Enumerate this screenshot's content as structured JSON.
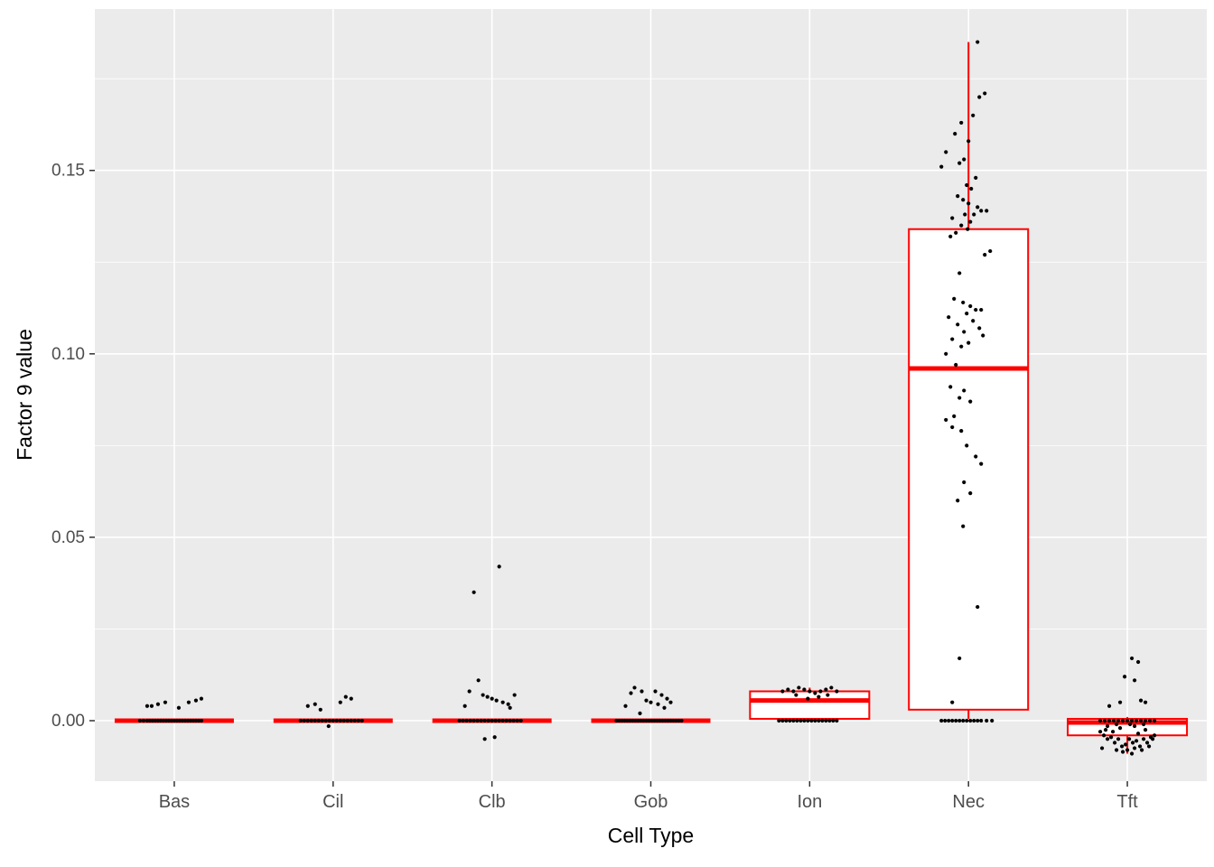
{
  "figure": {
    "background": "#FFFFFF"
  },
  "chart_data": {
    "type": "boxplot",
    "title": "",
    "xlabel": "Cell Type",
    "ylabel": "Factor 9 value",
    "categories": [
      "Bas",
      "Cil",
      "Clb",
      "Gob",
      "Ion",
      "Nec",
      "Tft"
    ],
    "ylim": [
      -0.0165,
      0.194
    ],
    "y_major_ticks": [
      0.0,
      0.05,
      0.1,
      0.15
    ],
    "y_major_tick_labels": [
      "0.00",
      "0.05",
      "0.10",
      "0.15"
    ],
    "y_minor_ticks": [
      0.025,
      0.075,
      0.125,
      0.175
    ],
    "grid": true,
    "legend": "none",
    "panel_background": "#EBEBEB",
    "grid_color": "#FFFFFF",
    "box_color": "#FF0000",
    "box_fill": "#FFFFFF",
    "point_color": "#000000",
    "tick_label_color": "#4D4D4D",
    "boxes": [
      {
        "category": "Bas",
        "whisker_low": 0.0,
        "q1": 0.0,
        "median": 0.0,
        "q3": 0.0,
        "whisker_high": 0.0
      },
      {
        "category": "Cil",
        "whisker_low": 0.0,
        "q1": 0.0,
        "median": 0.0,
        "q3": 0.0,
        "whisker_high": 0.0
      },
      {
        "category": "Clb",
        "whisker_low": 0.0,
        "q1": 0.0,
        "median": 0.0,
        "q3": 0.0,
        "whisker_high": 0.0
      },
      {
        "category": "Gob",
        "whisker_low": 0.0,
        "q1": 0.0,
        "median": 0.0,
        "q3": 0.0,
        "whisker_high": 0.0
      },
      {
        "category": "Ion",
        "whisker_low": 0.0,
        "q1": 0.0005,
        "median": 0.0055,
        "q3": 0.008,
        "whisker_high": 0.009
      },
      {
        "category": "Nec",
        "whisker_low": 0.0005,
        "q1": 0.003,
        "median": 0.096,
        "q3": 0.134,
        "whisker_high": 0.185
      },
      {
        "category": "Tft",
        "whisker_low": -0.009,
        "q1": -0.004,
        "median": -0.0005,
        "q3": 0.0005,
        "whisker_high": 0.001
      }
    ],
    "points": {
      "Bas": [
        [
          -30,
          0.004
        ],
        [
          -25,
          0.004
        ],
        [
          -18,
          0.0045
        ],
        [
          -10,
          0.005
        ],
        [
          5,
          0.0035
        ],
        [
          16,
          0.005
        ],
        [
          24,
          0.0055
        ],
        [
          30,
          0.006
        ],
        [
          -38,
          0
        ],
        [
          -34,
          0
        ],
        [
          -30,
          0
        ],
        [
          -27,
          0
        ],
        [
          -24,
          0
        ],
        [
          -21,
          0
        ],
        [
          -18,
          0
        ],
        [
          -15,
          0
        ],
        [
          -12,
          0
        ],
        [
          -9,
          0
        ],
        [
          -6,
          0
        ],
        [
          -3,
          0
        ],
        [
          0,
          0
        ],
        [
          3,
          0
        ],
        [
          6,
          0
        ],
        [
          9,
          0
        ],
        [
          12,
          0
        ],
        [
          15,
          0
        ],
        [
          18,
          0
        ],
        [
          21,
          0
        ],
        [
          24,
          0
        ],
        [
          27,
          0
        ],
        [
          30,
          0
        ]
      ],
      "Cil": [
        [
          -28,
          0.004
        ],
        [
          -20,
          0.0045
        ],
        [
          -14,
          0.003
        ],
        [
          8,
          0.005
        ],
        [
          14,
          0.0065
        ],
        [
          20,
          0.006
        ],
        [
          -5,
          -0.0015
        ],
        [
          -36,
          0
        ],
        [
          -32,
          0
        ],
        [
          -28,
          0
        ],
        [
          -24,
          0
        ],
        [
          -20,
          0
        ],
        [
          -16,
          0
        ],
        [
          -12,
          0
        ],
        [
          -8,
          0
        ],
        [
          -4,
          0
        ],
        [
          0,
          0
        ],
        [
          4,
          0
        ],
        [
          8,
          0
        ],
        [
          12,
          0
        ],
        [
          16,
          0
        ],
        [
          20,
          0
        ],
        [
          24,
          0
        ],
        [
          28,
          0
        ],
        [
          32,
          0
        ]
      ],
      "Clb": [
        [
          -20,
          0.035
        ],
        [
          8,
          0.042
        ],
        [
          -15,
          0.011
        ],
        [
          -25,
          0.008
        ],
        [
          -10,
          0.007
        ],
        [
          -5,
          0.0065
        ],
        [
          0,
          0.006
        ],
        [
          5,
          0.0055
        ],
        [
          12,
          0.005
        ],
        [
          18,
          0.0045
        ],
        [
          25,
          0.007
        ],
        [
          -30,
          0.004
        ],
        [
          20,
          0.0035
        ],
        [
          -8,
          -0.005
        ],
        [
          3,
          -0.0045
        ],
        [
          -36,
          0
        ],
        [
          -32,
          0
        ],
        [
          -28,
          0
        ],
        [
          -24,
          0
        ],
        [
          -20,
          0
        ],
        [
          -16,
          0
        ],
        [
          -12,
          0
        ],
        [
          -8,
          0
        ],
        [
          -4,
          0
        ],
        [
          0,
          0
        ],
        [
          4,
          0
        ],
        [
          8,
          0
        ],
        [
          12,
          0
        ],
        [
          16,
          0
        ],
        [
          20,
          0
        ],
        [
          24,
          0
        ],
        [
          28,
          0
        ],
        [
          32,
          0
        ]
      ],
      "Gob": [
        [
          -18,
          0.009
        ],
        [
          -10,
          0.008
        ],
        [
          -22,
          0.0075
        ],
        [
          5,
          0.008
        ],
        [
          12,
          0.007
        ],
        [
          18,
          0.006
        ],
        [
          -5,
          0.0055
        ],
        [
          0,
          0.005
        ],
        [
          22,
          0.005
        ],
        [
          8,
          0.0045
        ],
        [
          -28,
          0.004
        ],
        [
          15,
          0.0035
        ],
        [
          -12,
          0.002
        ],
        [
          -38,
          0
        ],
        [
          -35,
          0
        ],
        [
          -32,
          0
        ],
        [
          -29,
          0
        ],
        [
          -26,
          0
        ],
        [
          -23,
          0
        ],
        [
          -20,
          0
        ],
        [
          -17,
          0
        ],
        [
          -14,
          0
        ],
        [
          -11,
          0
        ],
        [
          -8,
          0
        ],
        [
          -5,
          0
        ],
        [
          -2,
          0
        ],
        [
          1,
          0
        ],
        [
          4,
          0
        ],
        [
          7,
          0
        ],
        [
          10,
          0
        ],
        [
          13,
          0
        ],
        [
          16,
          0
        ],
        [
          19,
          0
        ],
        [
          22,
          0
        ],
        [
          25,
          0
        ],
        [
          28,
          0
        ],
        [
          31,
          0
        ],
        [
          34,
          0
        ]
      ],
      "Ion": [
        [
          -30,
          0.008
        ],
        [
          -24,
          0.0085
        ],
        [
          -18,
          0.008
        ],
        [
          -12,
          0.009
        ],
        [
          -6,
          0.0085
        ],
        [
          0,
          0.008
        ],
        [
          6,
          0.0075
        ],
        [
          12,
          0.008
        ],
        [
          18,
          0.0085
        ],
        [
          24,
          0.009
        ],
        [
          30,
          0.008
        ],
        [
          -15,
          0.007
        ],
        [
          10,
          0.0065
        ],
        [
          -2,
          0.006
        ],
        [
          20,
          0.007
        ],
        [
          -34,
          0
        ],
        [
          -30,
          0
        ],
        [
          -26,
          0
        ],
        [
          -22,
          0
        ],
        [
          -18,
          0
        ],
        [
          -14,
          0
        ],
        [
          -10,
          0
        ],
        [
          -6,
          0
        ],
        [
          -2,
          0
        ],
        [
          2,
          0
        ],
        [
          6,
          0
        ],
        [
          10,
          0
        ],
        [
          14,
          0
        ],
        [
          18,
          0
        ],
        [
          22,
          0
        ],
        [
          26,
          0
        ],
        [
          30,
          0
        ]
      ],
      "Nec": [
        [
          10,
          0.185
        ],
        [
          18,
          0.171
        ],
        [
          12,
          0.17
        ],
        [
          5,
          0.165
        ],
        [
          -8,
          0.163
        ],
        [
          -15,
          0.16
        ],
        [
          0,
          0.158
        ],
        [
          -25,
          0.155
        ],
        [
          -5,
          0.153
        ],
        [
          -10,
          0.152
        ],
        [
          -30,
          0.151
        ],
        [
          8,
          0.148
        ],
        [
          -2,
          0.146
        ],
        [
          3,
          0.145
        ],
        [
          -12,
          0.143
        ],
        [
          -6,
          0.142
        ],
        [
          0,
          0.141
        ],
        [
          10,
          0.14
        ],
        [
          14,
          0.139
        ],
        [
          20,
          0.139
        ],
        [
          -4,
          0.138
        ],
        [
          6,
          0.138
        ],
        [
          -18,
          0.137
        ],
        [
          2,
          0.136
        ],
        [
          -8,
          0.135
        ],
        [
          -1,
          0.134
        ],
        [
          -14,
          0.133
        ],
        [
          -20,
          0.132
        ],
        [
          24,
          0.128
        ],
        [
          18,
          0.127
        ],
        [
          -10,
          0.122
        ],
        [
          -16,
          0.115
        ],
        [
          -6,
          0.114
        ],
        [
          2,
          0.113
        ],
        [
          8,
          0.112
        ],
        [
          14,
          0.112
        ],
        [
          -2,
          0.111
        ],
        [
          -22,
          0.11
        ],
        [
          5,
          0.109
        ],
        [
          -12,
          0.108
        ],
        [
          12,
          0.107
        ],
        [
          -5,
          0.106
        ],
        [
          16,
          0.105
        ],
        [
          -18,
          0.104
        ],
        [
          0,
          0.103
        ],
        [
          -8,
          0.102
        ],
        [
          -25,
          0.1
        ],
        [
          -14,
          0.097
        ],
        [
          -20,
          0.091
        ],
        [
          -5,
          0.09
        ],
        [
          -10,
          0.088
        ],
        [
          2,
          0.087
        ],
        [
          -16,
          0.083
        ],
        [
          -25,
          0.082
        ],
        [
          -18,
          0.08
        ],
        [
          -8,
          0.079
        ],
        [
          -2,
          0.075
        ],
        [
          8,
          0.072
        ],
        [
          14,
          0.07
        ],
        [
          -5,
          0.065
        ],
        [
          2,
          0.062
        ],
        [
          -12,
          0.06
        ],
        [
          -6,
          0.053
        ],
        [
          10,
          0.031
        ],
        [
          -10,
          0.017
        ],
        [
          -18,
          0.005
        ],
        [
          -30,
          0
        ],
        [
          -26,
          0
        ],
        [
          -22,
          0
        ],
        [
          -18,
          0
        ],
        [
          -14,
          0
        ],
        [
          -10,
          0
        ],
        [
          -6,
          0
        ],
        [
          -2,
          0
        ],
        [
          2,
          0
        ],
        [
          6,
          0
        ],
        [
          10,
          0
        ],
        [
          14,
          0
        ],
        [
          20,
          0
        ],
        [
          26,
          0
        ]
      ],
      "Tft": [
        [
          5,
          0.017
        ],
        [
          12,
          0.016
        ],
        [
          -3,
          0.012
        ],
        [
          8,
          0.011
        ],
        [
          -8,
          0.005
        ],
        [
          15,
          0.0055
        ],
        [
          20,
          0.005
        ],
        [
          -20,
          0.004
        ],
        [
          -30,
          -0.003
        ],
        [
          -26,
          -0.004
        ],
        [
          -22,
          -0.005
        ],
        [
          -18,
          -0.0045
        ],
        [
          -14,
          -0.006
        ],
        [
          -10,
          -0.005
        ],
        [
          -6,
          -0.007
        ],
        [
          -2,
          -0.0065
        ],
        [
          2,
          -0.005
        ],
        [
          6,
          -0.006
        ],
        [
          10,
          -0.0055
        ],
        [
          14,
          -0.007
        ],
        [
          18,
          -0.005
        ],
        [
          22,
          -0.006
        ],
        [
          26,
          -0.0045
        ],
        [
          30,
          -0.004
        ],
        [
          -28,
          -0.0075
        ],
        [
          -12,
          -0.008
        ],
        [
          0,
          -0.008
        ],
        [
          8,
          -0.0075
        ],
        [
          16,
          -0.008
        ],
        [
          24,
          -0.007
        ],
        [
          -5,
          -0.0085
        ],
        [
          5,
          -0.009
        ],
        [
          -16,
          -0.003
        ],
        [
          -24,
          -0.0025
        ],
        [
          12,
          -0.0035
        ],
        [
          28,
          -0.005
        ],
        [
          -8,
          -0.002
        ],
        [
          20,
          -0.0025
        ],
        [
          -30,
          0
        ],
        [
          -25,
          0
        ],
        [
          -20,
          0
        ],
        [
          -15,
          0
        ],
        [
          -10,
          0
        ],
        [
          -5,
          0
        ],
        [
          0,
          0
        ],
        [
          5,
          0
        ],
        [
          10,
          0
        ],
        [
          15,
          0
        ],
        [
          20,
          0
        ],
        [
          25,
          0
        ],
        [
          30,
          0
        ],
        [
          -12,
          -0.001
        ],
        [
          3,
          -0.001
        ],
        [
          18,
          -0.001
        ],
        [
          -22,
          -0.0015
        ],
        [
          8,
          -0.0015
        ]
      ]
    }
  }
}
